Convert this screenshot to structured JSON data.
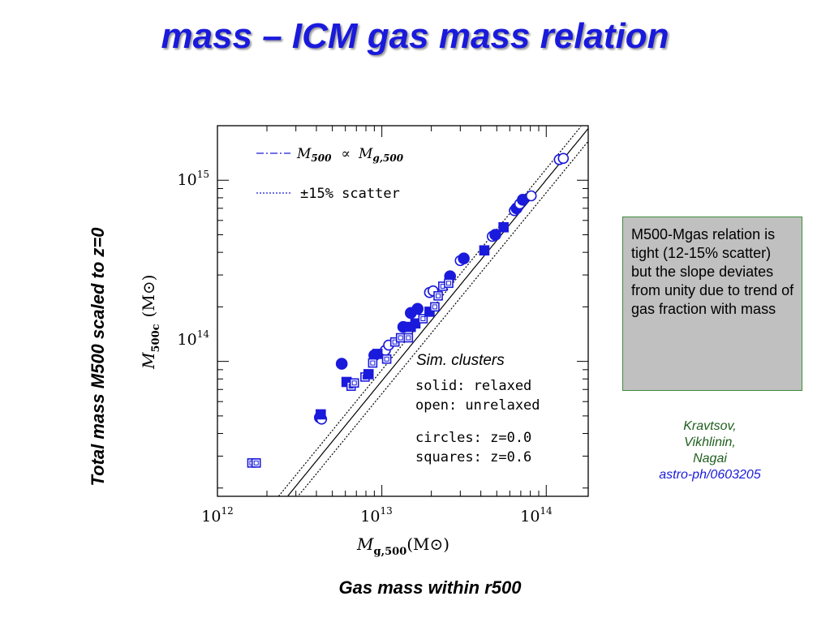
{
  "slide": {
    "title": "mass – ICM gas mass relation",
    "y_axis_caption": "Total mass M500 scaled to z=0",
    "x_axis_caption": "Gas mass within r500"
  },
  "note": {
    "text": "M500-Mgas relation is tight (12-15% scatter) but the slope deviates from unity due to trend of gas fraction with mass"
  },
  "citation": {
    "authors": [
      "Kravtsov,",
      "Vikhlinin,",
      "Nagai"
    ],
    "arxiv": "astro-ph/0603205"
  },
  "colors": {
    "title": "#1a1adc",
    "points": "#1a1adc",
    "note_background": "#c0c0c0",
    "note_border": "#3d8c3d",
    "authors": "#1e5f1e"
  },
  "chart_data": {
    "type": "scatter",
    "x_scale": "log",
    "y_scale": "log",
    "xlim": [
      1000000000000.0,
      180000000000000.0
    ],
    "ylim": [
      18000000000000.0,
      2000000000000000.0
    ],
    "x_ticks": [
      {
        "value": 1000000000000.0,
        "base": "10",
        "exp": "12"
      },
      {
        "value": 10000000000000.0,
        "base": "10",
        "exp": "13"
      },
      {
        "value": 100000000000000.0,
        "base": "10",
        "exp": "14"
      }
    ],
    "y_ticks": [
      {
        "value": 100000000000000.0,
        "base": "10",
        "exp": "14"
      },
      {
        "value": 1000000000000000.0,
        "base": "10",
        "exp": "15"
      }
    ],
    "xlabel": {
      "main": "M",
      "sub": "g,500",
      "unit": "(M⊙)"
    },
    "ylabel": {
      "main": "M",
      "sub": "500c",
      "unit": "(M⊙)"
    },
    "legend": {
      "placement": "top-left",
      "entries": [
        {
          "style": "dash-dot",
          "label_main": "M",
          "label_main_sub": "500",
          "label_rel": "∝",
          "label_tail": "M",
          "label_tail_sub": "g,500"
        },
        {
          "style": "dotted",
          "label": "±15% scatter"
        }
      ]
    },
    "annotation": {
      "heading": "Sim. clusters",
      "lines": [
        "solid: relaxed",
        "open: unrelaxed",
        "circles: z=0.0",
        "squares: z=0.6"
      ]
    },
    "relation": {
      "normalization": 78000000000000.0,
      "pivot_x": 10000000000000.0,
      "slope": 1.11,
      "scatter": 0.15
    },
    "series": [
      {
        "name": "circles: z=0.0",
        "marker": "circle",
        "points": [
          {
            "x": 4200000000000.0,
            "y": 49000000000000.0,
            "filled": true
          },
          {
            "x": 4300000000000.0,
            "y": 48000000000000.0,
            "filled": false
          },
          {
            "x": 5700000000000.0,
            "y": 97000000000000.0,
            "filled": true
          },
          {
            "x": 9000000000000.0,
            "y": 108000000000000.0,
            "filled": true
          },
          {
            "x": 10500000000000.0,
            "y": 115000000000000.0,
            "filled": false
          },
          {
            "x": 11000000000000.0,
            "y": 123000000000000.0,
            "filled": false
          },
          {
            "x": 13500000000000.0,
            "y": 155000000000000.0,
            "filled": true
          },
          {
            "x": 15000000000000.0,
            "y": 185000000000000.0,
            "filled": true
          },
          {
            "x": 16500000000000.0,
            "y": 195000000000000.0,
            "filled": true
          },
          {
            "x": 19500000000000.0,
            "y": 240000000000000.0,
            "filled": false
          },
          {
            "x": 20500000000000.0,
            "y": 245000000000000.0,
            "filled": false
          },
          {
            "x": 26000000000000.0,
            "y": 295000000000000.0,
            "filled": true
          },
          {
            "x": 30000000000000.0,
            "y": 360000000000000.0,
            "filled": false
          },
          {
            "x": 31500000000000.0,
            "y": 370000000000000.0,
            "filled": true
          },
          {
            "x": 47000000000000.0,
            "y": 490000000000000.0,
            "filled": false
          },
          {
            "x": 49000000000000.0,
            "y": 500000000000000.0,
            "filled": true
          },
          {
            "x": 64000000000000.0,
            "y": 680000000000000.0,
            "filled": false
          },
          {
            "x": 66000000000000.0,
            "y": 700000000000000.0,
            "filled": true
          },
          {
            "x": 69000000000000.0,
            "y": 740000000000000.0,
            "filled": false
          },
          {
            "x": 72000000000000.0,
            "y": 780000000000000.0,
            "filled": true
          },
          {
            "x": 81000000000000.0,
            "y": 820000000000000.0,
            "filled": false
          },
          {
            "x": 120000000000000.0,
            "y": 1300000000000000.0,
            "filled": false
          },
          {
            "x": 127000000000000.0,
            "y": 1320000000000000.0,
            "filled": false
          }
        ]
      },
      {
        "name": "squares: z=0.6",
        "marker": "square",
        "points": [
          {
            "x": 1620000000000.0,
            "y": 27500000000000.0,
            "filled": false
          },
          {
            "x": 1720000000000.0,
            "y": 27500000000000.0,
            "filled": false
          },
          {
            "x": 4250000000000.0,
            "y": 51000000000000.0,
            "filled": true
          },
          {
            "x": 6100000000000.0,
            "y": 77000000000000.0,
            "filled": true
          },
          {
            "x": 6500000000000.0,
            "y": 73000000000000.0,
            "filled": false
          },
          {
            "x": 6800000000000.0,
            "y": 76000000000000.0,
            "filled": false
          },
          {
            "x": 7900000000000.0,
            "y": 82000000000000.0,
            "filled": false
          },
          {
            "x": 8300000000000.0,
            "y": 85000000000000.0,
            "filled": true
          },
          {
            "x": 8800000000000.0,
            "y": 98000000000000.0,
            "filled": false
          },
          {
            "x": 9400000000000.0,
            "y": 110000000000000.0,
            "filled": true
          },
          {
            "x": 10700000000000.0,
            "y": 103000000000000.0,
            "filled": false
          },
          {
            "x": 12000000000000.0,
            "y": 128000000000000.0,
            "filled": false
          },
          {
            "x": 13000000000000.0,
            "y": 135000000000000.0,
            "filled": false
          },
          {
            "x": 14500000000000.0,
            "y": 135000000000000.0,
            "filled": false
          },
          {
            "x": 15000000000000.0,
            "y": 155000000000000.0,
            "filled": true
          },
          {
            "x": 16000000000000.0,
            "y": 162000000000000.0,
            "filled": true
          },
          {
            "x": 17800000000000.0,
            "y": 172000000000000.0,
            "filled": false
          },
          {
            "x": 19500000000000.0,
            "y": 188000000000000.0,
            "filled": true
          },
          {
            "x": 21000000000000.0,
            "y": 200000000000000.0,
            "filled": false
          },
          {
            "x": 22000000000000.0,
            "y": 230000000000000.0,
            "filled": false
          },
          {
            "x": 23500000000000.0,
            "y": 260000000000000.0,
            "filled": false
          },
          {
            "x": 25500000000000.0,
            "y": 270000000000000.0,
            "filled": false
          },
          {
            "x": 42000000000000.0,
            "y": 410000000000000.0,
            "filled": true
          },
          {
            "x": 55000000000000.0,
            "y": 550000000000000.0,
            "filled": true
          }
        ]
      }
    ]
  }
}
